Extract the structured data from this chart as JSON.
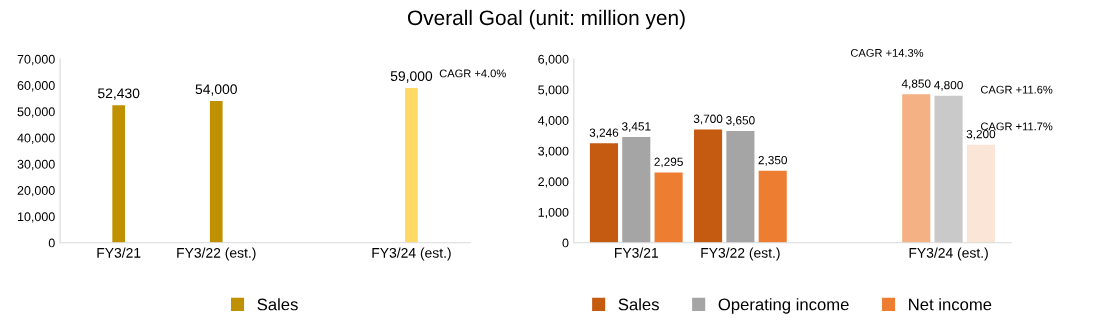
{
  "chart_data": [
    {
      "type": "bar",
      "title": "Overall Goal (unit: million yen)",
      "categories": [
        "FY3/21",
        "FY3/22 (est.)",
        null,
        "FY3/24 (est.)"
      ],
      "series": [
        {
          "name": "Sales",
          "color": "#bf9000",
          "colors": [
            "#bf9000",
            "#bf9000",
            null,
            "#ffd966"
          ],
          "values": [
            52430,
            54000,
            null,
            59000
          ],
          "value_labels": [
            "52,430",
            "54,000",
            null,
            "59,000"
          ]
        }
      ],
      "ylim": [
        0,
        70000
      ],
      "yticks": [
        0,
        {
          "value": 10000,
          "label": "10,000"
        },
        {
          "value": 20000,
          "label": "20,000"
        },
        {
          "value": 30000,
          "label": "30,000"
        },
        {
          "value": 40000,
          "label": "40,000"
        },
        {
          "value": 50000,
          "label": "50,000"
        },
        {
          "value": 60000,
          "label": "60,000"
        },
        {
          "value": 70000,
          "label": "70,000"
        }
      ],
      "annotations": [
        {
          "text": "CAGR +4.0%",
          "x": "FY3/24 (est.)",
          "y": 59000
        }
      ],
      "legend": "bottom"
    },
    {
      "type": "bar",
      "categories": [
        "FY3/21",
        "FY3/22 (est.)",
        null,
        "FY3/24 (est.)"
      ],
      "series": [
        {
          "name": "Sales",
          "color": "#c55a11",
          "colors": [
            "#c55a11",
            "#c55a11",
            null,
            "#f4b183"
          ],
          "values": [
            3246,
            3700,
            null,
            4850
          ],
          "value_labels": [
            "3,246",
            "3,700",
            null,
            "4,850"
          ]
        },
        {
          "name": "Operating income",
          "color": "#a5a5a5",
          "colors": [
            "#a5a5a5",
            "#a5a5a5",
            null,
            "#c9c9c9"
          ],
          "values": [
            3451,
            3650,
            null,
            4800
          ],
          "value_labels": [
            "3,451",
            "3,650",
            null,
            "4,800"
          ]
        },
        {
          "name": "Net income",
          "color": "#ed7d31",
          "colors": [
            "#ed7d31",
            "#ed7d31",
            null,
            "#fbe5d6"
          ],
          "values": [
            2295,
            2350,
            null,
            3200
          ],
          "value_labels": [
            "2,295",
            "2,350",
            null,
            "3,200"
          ]
        }
      ],
      "ylim": [
        0,
        6000
      ],
      "yticks": [
        0,
        {
          "value": 1000,
          "label": "1,000"
        },
        {
          "value": 2000,
          "label": "2,000"
        },
        {
          "value": 3000,
          "label": "3,000"
        },
        {
          "value": 4000,
          "label": "4,000"
        },
        {
          "value": 5000,
          "label": "5,000"
        },
        {
          "value": 6000,
          "label": "6,000"
        }
      ],
      "annotations": [
        "CAGR +14.3%",
        "CAGR +11.6%",
        "CAGR +11.7%"
      ],
      "legend": "bottom"
    }
  ]
}
